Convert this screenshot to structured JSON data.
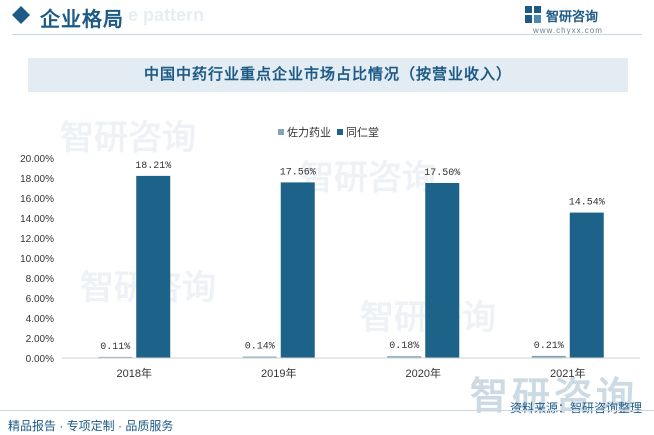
{
  "header": {
    "title": "企业格局",
    "ghost_text": "e pattern",
    "logo_name": "智研咨询",
    "logo_url": "www.chyxx.com"
  },
  "chart_data": {
    "type": "bar",
    "title": "中国中药行业重点企业市场占比情况（按营业收入）",
    "categories": [
      "2018年",
      "2019年",
      "2020年",
      "2021年"
    ],
    "series": [
      {
        "name": "佐力药业",
        "values": [
          0.11,
          0.14,
          0.18,
          0.21
        ],
        "labels": [
          "0.11%",
          "0.14%",
          "0.18%",
          "0.21%"
        ]
      },
      {
        "name": "同仁堂",
        "values": [
          18.21,
          17.56,
          17.5,
          14.54
        ],
        "labels": [
          "18.21%",
          "17.56%",
          "17.50%",
          "14.54%"
        ]
      }
    ],
    "yticks": [
      "0.00%",
      "2.00%",
      "4.00%",
      "6.00%",
      "8.00%",
      "10.00%",
      "12.00%",
      "14.00%",
      "16.00%",
      "18.00%",
      "20.00%"
    ],
    "ylim": [
      0,
      20
    ],
    "colors": {
      "佐力药业": "#7fa6b8",
      "同仁堂": "#1d6288"
    },
    "legend_position": "top-center",
    "grid": false
  },
  "footer": {
    "left": "精品报告 · 专项定制 · 品质服务",
    "right": "资料来源：智研咨询整理",
    "watermark": "智研咨询"
  }
}
